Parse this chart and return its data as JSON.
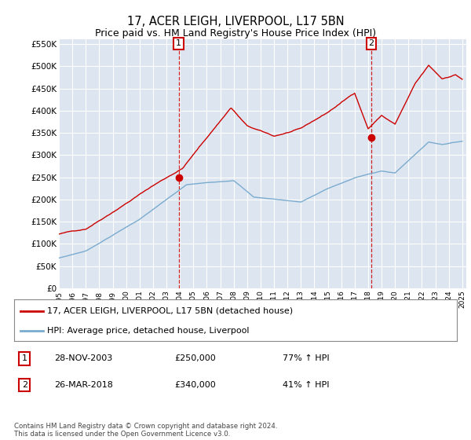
{
  "title": "17, ACER LEIGH, LIVERPOOL, L17 5BN",
  "subtitle": "Price paid vs. HM Land Registry's House Price Index (HPI)",
  "ylim": [
    0,
    560000
  ],
  "yticks": [
    0,
    50000,
    100000,
    150000,
    200000,
    250000,
    300000,
    350000,
    400000,
    450000,
    500000,
    550000
  ],
  "ytick_labels": [
    "£0",
    "£50K",
    "£100K",
    "£150K",
    "£200K",
    "£250K",
    "£300K",
    "£350K",
    "£400K",
    "£450K",
    "£500K",
    "£550K"
  ],
  "plot_bg_color": "#dde6f0",
  "line1_color": "#cc0000",
  "line2_color": "#7aabcf",
  "sale1_date_num": 2003.91,
  "sale1_price": 250000,
  "sale2_date_num": 2018.23,
  "sale2_price": 340000,
  "legend_line1": "17, ACER LEIGH, LIVERPOOL, L17 5BN (detached house)",
  "legend_line2": "HPI: Average price, detached house, Liverpool",
  "table_row1": [
    "1",
    "28-NOV-2003",
    "£250,000",
    "77% ↑ HPI"
  ],
  "table_row2": [
    "2",
    "26-MAR-2018",
    "£340,000",
    "41% ↑ HPI"
  ],
  "footer": "Contains HM Land Registry data © Crown copyright and database right 2024.\nThis data is licensed under the Open Government Licence v3.0."
}
